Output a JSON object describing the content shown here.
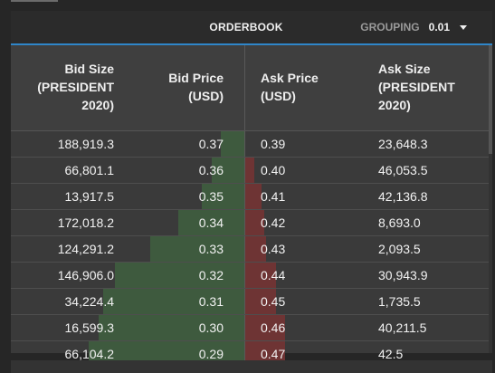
{
  "header": {
    "title": "ORDERBOOK",
    "grouping_label": "GROUPING",
    "grouping_value": "0.01"
  },
  "columns": {
    "bid_size": [
      "Bid Size",
      "(PRESIDENT",
      "2020)"
    ],
    "bid_price": [
      "Bid Price",
      "(USD)"
    ],
    "ask_price": [
      "Ask Price",
      "(USD)"
    ],
    "ask_size": [
      "Ask Size",
      "(PRESIDENT",
      "2020)"
    ]
  },
  "colors": {
    "accent": "#2f86c9",
    "bid_depth": "#3e5a3e",
    "ask_depth": "#6e3434"
  },
  "rows": [
    {
      "bid_size": "188,919.3",
      "bid_price": "0.37",
      "ask_price": "0.39",
      "ask_size": "23,648.3",
      "bid_depth": 0.1,
      "ask_depth": 0.0
    },
    {
      "bid_size": "66,801.1",
      "bid_price": "0.36",
      "ask_price": "0.40",
      "ask_size": "46,053.5",
      "bid_depth": 0.14,
      "ask_depth": 0.04
    },
    {
      "bid_size": "13,917.5",
      "bid_price": "0.35",
      "ask_price": "0.41",
      "ask_size": "42,136.8",
      "bid_depth": 0.18,
      "ask_depth": 0.07
    },
    {
      "bid_size": "172,018.2",
      "bid_price": "0.34",
      "ask_price": "0.42",
      "ask_size": "8,693.0",
      "bid_depth": 0.28,
      "ask_depth": 0.08
    },
    {
      "bid_size": "124,291.2",
      "bid_price": "0.33",
      "ask_price": "0.43",
      "ask_size": "2,093.5",
      "bid_depth": 0.4,
      "ask_depth": 0.09
    },
    {
      "bid_size": "146,906.0",
      "bid_price": "0.32",
      "ask_price": "0.44",
      "ask_size": "30,943.9",
      "bid_depth": 0.55,
      "ask_depth": 0.13
    },
    {
      "bid_size": "34,224.4",
      "bid_price": "0.31",
      "ask_price": "0.45",
      "ask_size": "1,735.5",
      "bid_depth": 0.6,
      "ask_depth": 0.13
    },
    {
      "bid_size": "16,599.3",
      "bid_price": "0.30",
      "ask_price": "0.46",
      "ask_size": "40,211.5",
      "bid_depth": 0.62,
      "ask_depth": 0.17
    },
    {
      "bid_size": "66,104.2",
      "bid_price": "0.29",
      "ask_price": "0.47",
      "ask_size": "42.5",
      "bid_depth": 0.66,
      "ask_depth": 0.17
    }
  ]
}
